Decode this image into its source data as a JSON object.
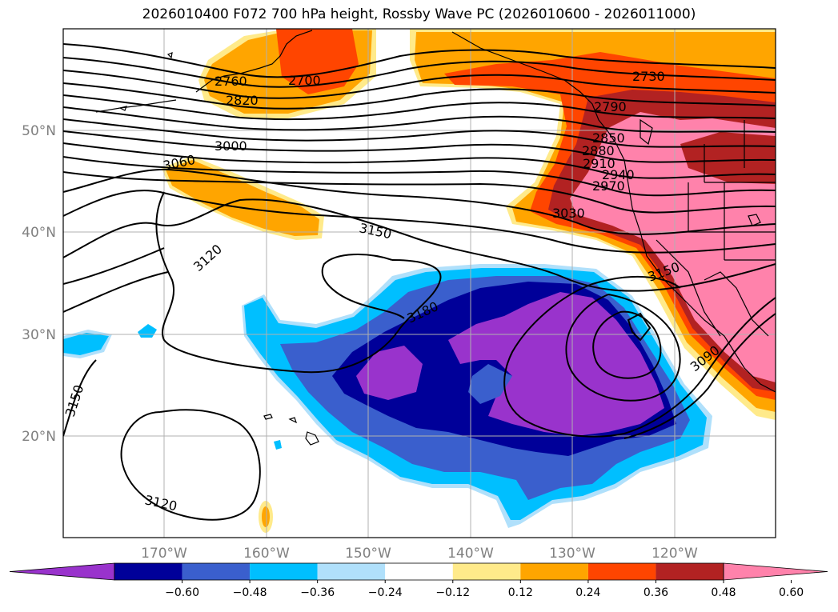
{
  "title": "2026010400 F072 700 hPa height, Rossby Wave PC (2026010600 - 2026011000)",
  "lat_ticks": [
    "50°N",
    "40°N",
    "30°N",
    "20°N"
  ],
  "lon_ticks": [
    "170°W",
    "160°W",
    "150°W",
    "140°W",
    "130°W",
    "120°W"
  ],
  "contour_labels": [
    "2700",
    "2730",
    "2760",
    "2790",
    "2820",
    "2850",
    "2880",
    "2910",
    "2940",
    "2970",
    "3000",
    "3030",
    "3060",
    "3090",
    "3120",
    "3120",
    "3150",
    "3150",
    "3150",
    "3180"
  ],
  "colorbar": {
    "ticks": [
      "−0.60",
      "−0.48",
      "−0.36",
      "−0.24",
      "−0.12",
      "0.12",
      "0.24",
      "0.36",
      "0.48",
      "0.60"
    ],
    "colors": [
      "#9933cc",
      "#000099",
      "#3a5fcd",
      "#00bfff",
      "#b0e0fb",
      "#ffffff",
      "#ffea8a",
      "#ffa500",
      "#ff4500",
      "#b22222",
      "#ff82ab"
    ]
  },
  "colors": {
    "purple": "#9933cc",
    "navy": "#000099",
    "blue": "#3a5fcd",
    "cyan": "#00bfff",
    "light_blue": "#b0e0fb",
    "light_yellow": "#ffea8a",
    "orange": "#ffa500",
    "red_orange": "#ff4500",
    "dark_red": "#b22222",
    "pink": "#ff82ab"
  }
}
